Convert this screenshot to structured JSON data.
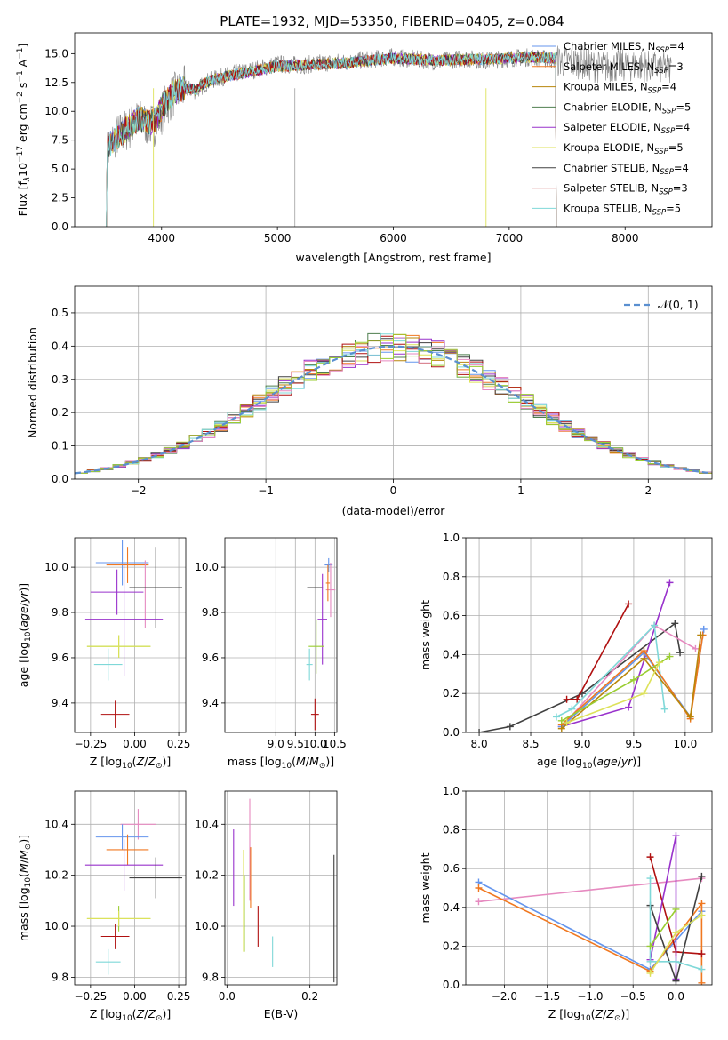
{
  "figure_title": "PLATE=1932, MJD=53350, FIBERID=0405, z=0.084",
  "models": [
    {
      "name": "Chabrier MILES",
      "color": "#6495ed",
      "nssp": "4"
    },
    {
      "name": "Salpeter MILES",
      "color": "#f07820",
      "nssp": "3"
    },
    {
      "name": "Kroupa MILES",
      "color": "#b8860b",
      "nssp": "4"
    },
    {
      "name": "Chabrier ELODIE",
      "color": "#4f7f4f",
      "nssp": "5"
    },
    {
      "name": "Salpeter ELODIE",
      "color": "#9932cc",
      "nssp": "4"
    },
    {
      "name": "Kroupa ELODIE",
      "color": "#dde25a",
      "nssp": "5"
    },
    {
      "name": "Chabrier STELIB",
      "color": "#404040",
      "nssp": "4"
    },
    {
      "name": "Salpeter STELIB",
      "color": "#b01010",
      "nssp": "3"
    },
    {
      "name": "Kroupa STELIB",
      "color": "#7fd8d8",
      "nssp": "5"
    }
  ],
  "legend_nssp_label": "N",
  "legend_nssp_sub": "SSP",
  "chart_data": [
    {
      "id": "spectrum",
      "type": "line",
      "xlabel": "wavelength [Angstrom, rest frame]",
      "ylabel_parts": {
        "a": "Flux [f",
        "b": "λ",
        "c": "10",
        "d": "−17",
        "e": " erg cm",
        "f": "−2",
        "g": " s",
        "h": "−1",
        "i": " A",
        "j": "−1",
        "k": "]"
      },
      "xlim": [
        3250,
        8750
      ],
      "ylim": [
        0,
        16.8
      ],
      "xticks": [
        4000,
        5000,
        6000,
        7000,
        8000
      ],
      "yticks": [
        0.0,
        2.5,
        5.0,
        7.5,
        10.0,
        12.5,
        15.0
      ],
      "data_color": "#808080",
      "spectrum_data": {
        "x": [
          3530,
          3600,
          3700,
          3800,
          3900,
          3950,
          4000,
          4100,
          4200,
          4300,
          4400,
          4500,
          4600,
          4800,
          5000,
          5200,
          5400,
          5600,
          5800,
          6000,
          6200,
          6400,
          6600,
          6800,
          7000,
          7200,
          7400,
          7600,
          7800,
          8000,
          8200,
          8400
        ],
        "y": [
          6.5,
          7.8,
          8.4,
          9.2,
          8.8,
          8.9,
          9.9,
          11.4,
          12.0,
          11.8,
          12.6,
          12.9,
          13.2,
          13.6,
          14.1,
          14.0,
          14.2,
          14.3,
          14.5,
          14.7,
          14.5,
          14.3,
          14.6,
          14.4,
          14.6,
          14.7,
          14.4,
          14.2,
          13.8,
          14.0,
          13.9,
          13.7
        ]
      },
      "model_fit": {
        "x": [
          3530,
          3600,
          3700,
          3800,
          3900,
          3950,
          4000,
          4100,
          4200,
          4300,
          4400,
          4500,
          4600,
          4800,
          5000,
          5200,
          5400,
          5600,
          5800,
          6000,
          6200,
          6400,
          6600,
          6800,
          7000,
          7200,
          7400
        ],
        "y": [
          7.0,
          7.6,
          8.5,
          9.4,
          9.0,
          9.3,
          10.3,
          11.6,
          12.0,
          11.9,
          12.6,
          12.9,
          13.1,
          13.5,
          13.9,
          14.0,
          14.1,
          14.2,
          14.4,
          14.6,
          14.5,
          14.4,
          14.5,
          14.5,
          14.6,
          14.7,
          14.6
        ]
      }
    },
    {
      "id": "residual-hist",
      "type": "histogram",
      "xlabel": "(data-model)/error",
      "ylabel": "Normed distribution",
      "xlim": [
        -2.5,
        2.5
      ],
      "ylim": [
        0,
        0.58
      ],
      "xticks": [
        -2,
        -1,
        0,
        1,
        2
      ],
      "yticks": [
        0.0,
        0.1,
        0.2,
        0.3,
        0.4,
        0.5
      ],
      "legend_label": "𝒩(0, 1)",
      "gauss_color": "#5a8fd0"
    },
    {
      "id": "age-vs-Z",
      "type": "errorbar",
      "xlabel": "Z [log10(Z/Z⊙)]",
      "ylabel": "age  [log10(age/yr)]",
      "xlim": [
        -0.34,
        0.29
      ],
      "ylim": [
        9.27,
        10.13
      ],
      "xticks": [
        -0.25,
        0.0,
        0.25
      ],
      "yticks": [
        9.4,
        9.6,
        9.8,
        10.0
      ],
      "points": [
        {
          "x": -0.07,
          "y": 10.02,
          "xe": 0.15,
          "ye": 0.1,
          "c": "#6495ed"
        },
        {
          "x": -0.04,
          "y": 10.01,
          "xe": 0.12,
          "ye": 0.08,
          "c": "#f07820"
        },
        {
          "x": 0.06,
          "y": 9.88,
          "xe": 0.0,
          "ye": 0.15,
          "c": "#e68ac0"
        },
        {
          "x": -0.1,
          "y": 9.89,
          "xe": 0.15,
          "ye": 0.1,
          "c": "#9932cc"
        },
        {
          "x": 0.12,
          "y": 9.91,
          "xe": 0.15,
          "ye": 0.18,
          "c": "#404040"
        },
        {
          "x": -0.06,
          "y": 9.77,
          "xe": 0.22,
          "ye": 0.25,
          "c": "#9932cc"
        },
        {
          "x": -0.09,
          "y": 9.65,
          "xe": 0.18,
          "ye": 0.05,
          "c": "#9acd32"
        },
        {
          "x": -0.09,
          "y": 9.65,
          "xe": 0.18,
          "ye": 0.05,
          "c": "#dde25a"
        },
        {
          "x": -0.15,
          "y": 9.57,
          "xe": 0.08,
          "ye": 0.07,
          "c": "#7fd8d8"
        },
        {
          "x": -0.11,
          "y": 9.35,
          "xe": 0.08,
          "ye": 0.06,
          "c": "#b01010"
        }
      ]
    },
    {
      "id": "age-vs-mass",
      "type": "errorbar",
      "xlabel": "mass [log10(M/M⊙)]",
      "ylabel": "",
      "xlim": [
        7.7,
        10.56
      ],
      "ylim": [
        9.27,
        10.13
      ],
      "xticks": [
        9.0,
        9.5,
        10.0,
        10.5
      ],
      "yticks": [
        9.4,
        9.6,
        9.8,
        10.0
      ],
      "points": [
        {
          "x": 10.35,
          "y": 10.01,
          "xe": 0.1,
          "ye": 0.03,
          "c": "#6495ed"
        },
        {
          "x": 10.4,
          "y": 9.9,
          "xe": 0.12,
          "ye": 0.12,
          "c": "#e68ac0"
        },
        {
          "x": 10.33,
          "y": 9.93,
          "xe": 0.05,
          "ye": 0.08,
          "c": "#f07820"
        },
        {
          "x": 10.0,
          "y": 9.91,
          "xe": 0.2,
          "ye": 0.0,
          "c": "#404040"
        },
        {
          "x": 10.19,
          "y": 9.77,
          "xe": 0.12,
          "ye": 0.2,
          "c": "#9932cc"
        },
        {
          "x": 10.03,
          "y": 9.65,
          "xe": 0.19,
          "ye": 0.12,
          "c": "#9acd32"
        },
        {
          "x": 9.86,
          "y": 9.57,
          "xe": 0.08,
          "ye": 0.07,
          "c": "#7fd8d8"
        },
        {
          "x": 10.0,
          "y": 9.35,
          "xe": 0.1,
          "ye": 0.07,
          "c": "#b01010"
        }
      ]
    },
    {
      "id": "weight-vs-age",
      "type": "line",
      "xlabel": "age  [log10(age/yr)]",
      "ylabel": "mass weight",
      "xlim": [
        7.87,
        10.26
      ],
      "ylim": [
        0,
        1
      ],
      "xticks": [
        8.0,
        8.5,
        9.0,
        9.5,
        10.0
      ],
      "yticks": [
        0.0,
        0.2,
        0.4,
        0.6,
        0.8,
        1.0
      ],
      "series": [
        {
          "c": "#404040",
          "x": [
            8.0,
            8.3,
            9.0,
            9.9,
            9.95
          ],
          "y": [
            0.0,
            0.03,
            0.2,
            0.56,
            0.41
          ]
        },
        {
          "c": "#b01010",
          "x": [
            8.85,
            8.95,
            9.45
          ],
          "y": [
            0.17,
            0.17,
            0.66
          ]
        },
        {
          "c": "#9932cc",
          "x": [
            8.8,
            9.45,
            9.85
          ],
          "y": [
            0.03,
            0.13,
            0.77
          ]
        },
        {
          "c": "#e68ac0",
          "x": [
            8.8,
            9.7,
            10.1
          ],
          "y": [
            0.03,
            0.55,
            0.43
          ]
        },
        {
          "c": "#7fd8d8",
          "x": [
            8.75,
            8.9,
            9.7,
            9.8
          ],
          "y": [
            0.08,
            0.12,
            0.55,
            0.12
          ]
        },
        {
          "c": "#6495ed",
          "x": [
            8.8,
            9.6,
            10.05,
            10.18
          ],
          "y": [
            0.03,
            0.41,
            0.08,
            0.53
          ]
        },
        {
          "c": "#f07820",
          "x": [
            8.8,
            9.6,
            10.05,
            10.17
          ],
          "y": [
            0.04,
            0.42,
            0.07,
            0.5
          ]
        },
        {
          "c": "#b8860b",
          "x": [
            8.8,
            9.6,
            10.05,
            10.15
          ],
          "y": [
            0.02,
            0.38,
            0.08,
            0.5
          ]
        },
        {
          "c": "#9acd32",
          "x": [
            8.8,
            9.5,
            9.85
          ],
          "y": [
            0.06,
            0.27,
            0.39
          ]
        },
        {
          "c": "#dde25a",
          "x": [
            8.85,
            9.6,
            9.75
          ],
          "y": [
            0.05,
            0.2,
            0.36
          ]
        }
      ]
    },
    {
      "id": "mass-vs-Z",
      "type": "errorbar",
      "xlabel": "Z [log10(Z/Z⊙)]",
      "ylabel": "mass [log10(M/M⊙)]",
      "xlim": [
        -0.34,
        0.29
      ],
      "ylim": [
        9.77,
        10.53
      ],
      "xticks": [
        -0.25,
        0.0,
        0.25
      ],
      "yticks": [
        9.8,
        10.0,
        10.2,
        10.4
      ],
      "points": [
        {
          "x": 0.02,
          "y": 10.4,
          "xe": 0.1,
          "ye": 0.06,
          "c": "#e68ac0"
        },
        {
          "x": -0.07,
          "y": 10.35,
          "xe": 0.15,
          "ye": 0.05,
          "c": "#6495ed"
        },
        {
          "x": -0.04,
          "y": 10.3,
          "xe": 0.12,
          "ye": 0.06,
          "c": "#f07820"
        },
        {
          "x": -0.06,
          "y": 10.24,
          "xe": 0.22,
          "ye": 0.1,
          "c": "#9932cc"
        },
        {
          "x": 0.12,
          "y": 10.19,
          "xe": 0.15,
          "ye": 0.08,
          "c": "#404040"
        },
        {
          "x": -0.09,
          "y": 10.03,
          "xe": 0.18,
          "ye": 0.05,
          "c": "#9acd32"
        },
        {
          "x": -0.09,
          "y": 10.03,
          "xe": 0.18,
          "ye": 0.03,
          "c": "#dde25a"
        },
        {
          "x": -0.11,
          "y": 9.96,
          "xe": 0.08,
          "ye": 0.05,
          "c": "#b01010"
        },
        {
          "x": -0.15,
          "y": 9.86,
          "xe": 0.07,
          "ye": 0.05,
          "c": "#7fd8d8"
        }
      ]
    },
    {
      "id": "mass-vs-ebv",
      "type": "errorbar",
      "xlabel": "E(B-V)",
      "ylabel": "",
      "xlim": [
        -0.005,
        0.265
      ],
      "ylim": [
        9.77,
        10.53
      ],
      "xticks": [
        0.0,
        0.2
      ],
      "yticks": [
        9.8,
        10.0,
        10.2,
        10.4
      ],
      "points": [
        {
          "x": 0.055,
          "y": 10.3,
          "xe": 0,
          "ye": 0.2,
          "c": "#e68ac0"
        },
        {
          "x": 0.057,
          "y": 10.19,
          "xe": 0,
          "ye": 0.12,
          "c": "#f07820"
        },
        {
          "x": 0.016,
          "y": 10.23,
          "xe": 0,
          "ye": 0.15,
          "c": "#9932cc"
        },
        {
          "x": 0.04,
          "y": 10.1,
          "xe": 0,
          "ye": 0.2,
          "c": "#dde25a"
        },
        {
          "x": 0.042,
          "y": 10.05,
          "xe": 0,
          "ye": 0.15,
          "c": "#9acd32"
        },
        {
          "x": 0.075,
          "y": 10.0,
          "xe": 0,
          "ye": 0.08,
          "c": "#b01010"
        },
        {
          "x": 0.11,
          "y": 9.9,
          "xe": 0,
          "ye": 0.06,
          "c": "#7fd8d8"
        },
        {
          "x": 0.258,
          "y": 10.03,
          "xe": 0,
          "ye": 0.25,
          "c": "#404040"
        }
      ]
    },
    {
      "id": "weight-vs-Z",
      "type": "line",
      "xlabel": "Z [log10(Z/Z⊙)]",
      "ylabel": "mass weight",
      "xlim": [
        -2.45,
        0.42
      ],
      "ylim": [
        0,
        1
      ],
      "xticks": [
        -2.0,
        -1.5,
        -1.0,
        -0.5,
        0.0
      ],
      "xtick_labels": [
        "−2.0",
        "−1.5",
        "−1.0",
        "−0.5",
        "0.0"
      ],
      "yticks": [
        0.0,
        0.2,
        0.4,
        0.6,
        0.8,
        1.0
      ],
      "series": [
        {
          "c": "#e68ac0",
          "x": [
            -2.3,
            0.3
          ],
          "y": [
            0.43,
            0.55
          ]
        },
        {
          "c": "#6495ed",
          "x": [
            -2.3,
            -0.3,
            0.3
          ],
          "y": [
            0.53,
            0.08,
            0.38
          ]
        },
        {
          "c": "#f07820",
          "x": [
            -2.3,
            -0.3,
            0.3,
            0.3
          ],
          "y": [
            0.5,
            0.07,
            0.42,
            0.01
          ]
        },
        {
          "c": "#b01010",
          "x": [
            -0.3,
            0.0,
            0.3
          ],
          "y": [
            0.66,
            0.17,
            0.16
          ]
        },
        {
          "c": "#9932cc",
          "x": [
            -0.3,
            0.0,
            0.0
          ],
          "y": [
            0.13,
            0.77,
            0.03
          ]
        },
        {
          "c": "#404040",
          "x": [
            0.3,
            0.0,
            -0.3
          ],
          "y": [
            0.56,
            0.02,
            0.41
          ]
        },
        {
          "c": "#7fd8d8",
          "x": [
            -0.3,
            -0.3,
            0.0,
            0.3
          ],
          "y": [
            0.55,
            0.12,
            0.12,
            0.08
          ]
        },
        {
          "c": "#9acd32",
          "x": [
            -0.3,
            0.0
          ],
          "y": [
            0.2,
            0.39
          ]
        },
        {
          "c": "#dde25a",
          "x": [
            -0.3,
            0.0,
            0.3
          ],
          "y": [
            0.06,
            0.27,
            0.36
          ]
        }
      ]
    }
  ]
}
